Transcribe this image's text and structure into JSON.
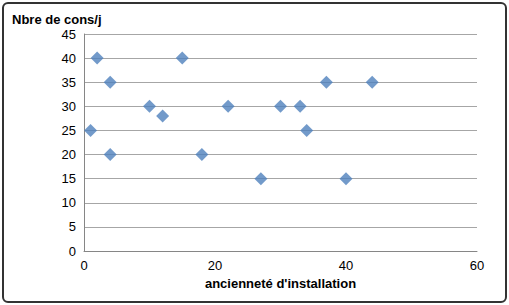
{
  "chart_data": {
    "type": "scatter",
    "x_label": "ancienneté d'installation",
    "y_label": "Nbre de cons/j",
    "x": [
      2,
      15,
      4,
      10,
      12,
      1,
      4,
      18,
      22,
      27,
      30,
      33,
      34,
      37,
      40,
      44
    ],
    "values": [
      40,
      40,
      35,
      30,
      28,
      25,
      20,
      20,
      30,
      15,
      30,
      30,
      25,
      35,
      15,
      35
    ],
    "color": "#4f81bd",
    "marker": "diamond",
    "xlim": [
      0,
      60
    ],
    "xticks": [
      0,
      20,
      40,
      60
    ],
    "ylim": [
      0,
      45
    ],
    "yticks": [
      0,
      5,
      10,
      15,
      20,
      25,
      30,
      35,
      40,
      45
    ],
    "grid": true
  }
}
